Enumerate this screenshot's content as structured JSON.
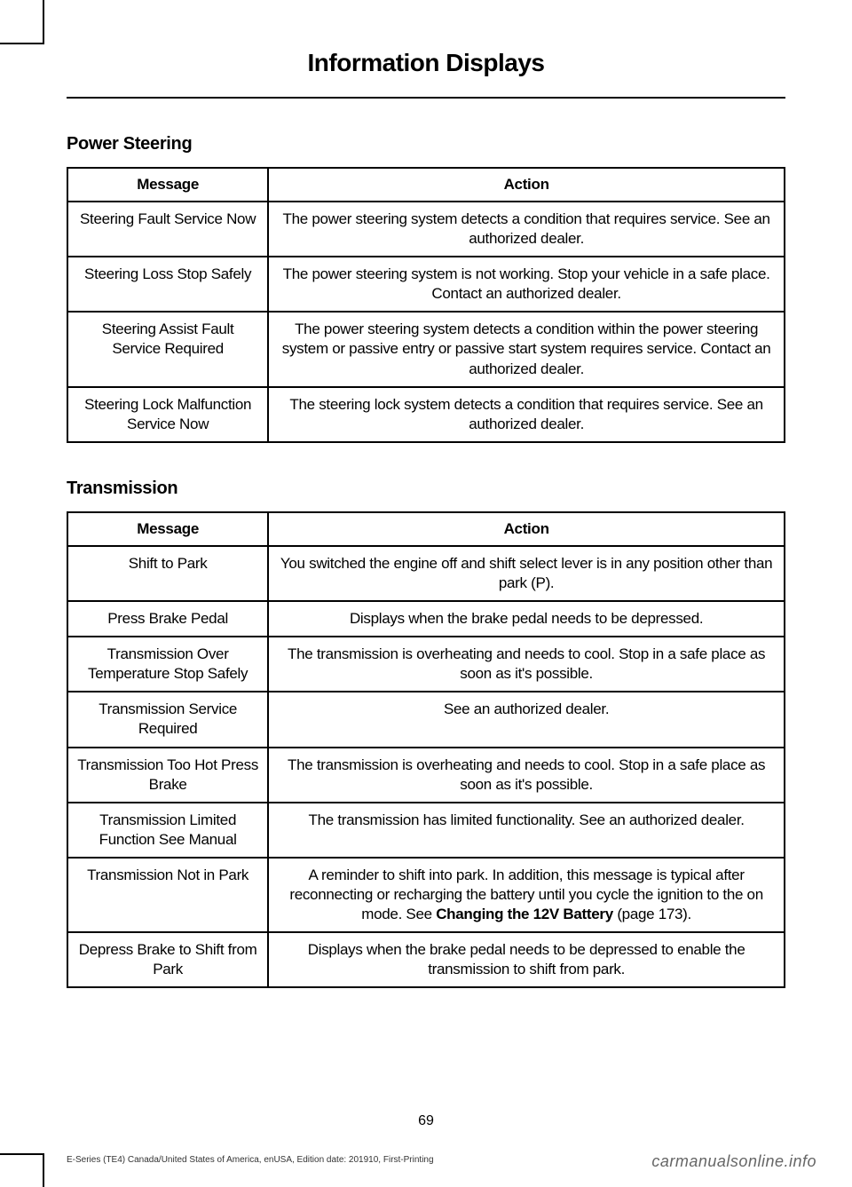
{
  "header": {
    "title": "Information Displays"
  },
  "sections": {
    "power_steering": {
      "title": "Power Steering",
      "columns": {
        "message": "Message",
        "action": "Action"
      },
      "rows": [
        {
          "message": "Steering Fault Service Now",
          "action": "The power steering system detects a condition that requires service. See an authorized dealer."
        },
        {
          "message": "Steering Loss Stop Safely",
          "action": "The power steering system is not working.  Stop your vehicle in a safe place.  Contact an authorized dealer."
        },
        {
          "message": "Steering Assist Fault Service Required",
          "action": "The power steering system detects a condition within the power steering system or passive entry or passive start system requires service. Contact an authorized dealer."
        },
        {
          "message": "Steering Lock Malfunction Service Now",
          "action": "The steering lock system detects a condition that requires service. See an authorized dealer."
        }
      ]
    },
    "transmission": {
      "title": "Transmission",
      "columns": {
        "message": "Message",
        "action": "Action"
      },
      "rows": [
        {
          "message": "Shift to Park",
          "action": "You switched the engine off and shift select lever is in any position other than park (P)."
        },
        {
          "message": "Press Brake Pedal",
          "action": "Displays when the brake pedal needs to be depressed."
        },
        {
          "message": "Transmission Over Temperature Stop Safely",
          "action": "The transmission is overheating and needs to cool.  Stop in a safe place as soon as it's possible."
        },
        {
          "message": "Transmission Service Required",
          "action": "See an authorized dealer."
        },
        {
          "message": "Transmission Too Hot Press Brake",
          "action": "The transmission is overheating and needs to cool.  Stop in a safe place as soon as it's possible."
        },
        {
          "message": "Transmission Limited Function See Manual",
          "action": "The transmission has limited functionality.  See an authorized dealer."
        },
        {
          "message": "Transmission Not in Park",
          "action_pre": "A reminder to shift into park. In addition, this message is typical after reconnecting or recharging the battery until you cycle the ignition to the on mode.  See ",
          "action_bold": "Changing the 12V Battery",
          "action_post": " (page 173)."
        },
        {
          "message": "Depress Brake to Shift from Park",
          "action": "Displays when the brake pedal needs to be depressed to enable the transmission to shift from park."
        }
      ]
    }
  },
  "footer": {
    "page_number": "69",
    "left_text": "E-Series (TE4) Canada/United States of America, enUSA, Edition date: 201910, First-Printing",
    "right_text": "carmanualsonline.info"
  }
}
